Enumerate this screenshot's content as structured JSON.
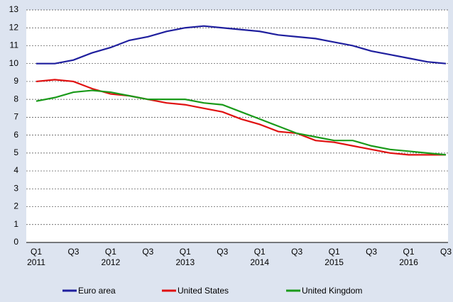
{
  "chart_data": {
    "type": "line",
    "categories": [
      [
        "Q1",
        "2011"
      ],
      null,
      [
        "Q3"
      ],
      null,
      [
        "Q1",
        "2012"
      ],
      null,
      [
        "Q3"
      ],
      null,
      [
        "Q1",
        "2013"
      ],
      null,
      [
        "Q3"
      ],
      null,
      [
        "Q1",
        "2014"
      ],
      null,
      [
        "Q3"
      ],
      null,
      [
        "Q1",
        "2015"
      ],
      null,
      [
        "Q3"
      ],
      null,
      [
        "Q1",
        "2016"
      ],
      null,
      [
        "Q3"
      ]
    ],
    "series": [
      {
        "name": "Euro area",
        "color": "#1f1f9e",
        "values": [
          10.0,
          10.0,
          10.2,
          10.6,
          10.9,
          11.3,
          11.5,
          11.8,
          12.0,
          12.1,
          12.0,
          11.9,
          11.8,
          11.6,
          11.5,
          11.4,
          11.2,
          11.0,
          10.7,
          10.5,
          10.3,
          10.1,
          10.0
        ]
      },
      {
        "name": "United States",
        "color": "#e01010",
        "values": [
          9.0,
          9.1,
          9.0,
          8.6,
          8.3,
          8.2,
          8.0,
          7.8,
          7.7,
          7.5,
          7.3,
          6.9,
          6.6,
          6.2,
          6.1,
          5.7,
          5.6,
          5.4,
          5.2,
          5.0,
          4.9,
          4.9,
          4.9
        ]
      },
      {
        "name": "United Kingdom",
        "color": "#1a9a1a",
        "values": [
          7.9,
          8.1,
          8.4,
          8.5,
          8.4,
          8.2,
          8.0,
          8.0,
          8.0,
          7.8,
          7.7,
          7.3,
          6.9,
          6.5,
          6.1,
          5.9,
          5.7,
          5.7,
          5.4,
          5.2,
          5.1,
          5.0,
          4.9
        ]
      }
    ],
    "ylim": [
      0,
      13
    ],
    "yticks": [
      0,
      1,
      2,
      3,
      4,
      5,
      6,
      7,
      8,
      9,
      10,
      11,
      12,
      13
    ],
    "grid": true,
    "legend": "bottom"
  }
}
